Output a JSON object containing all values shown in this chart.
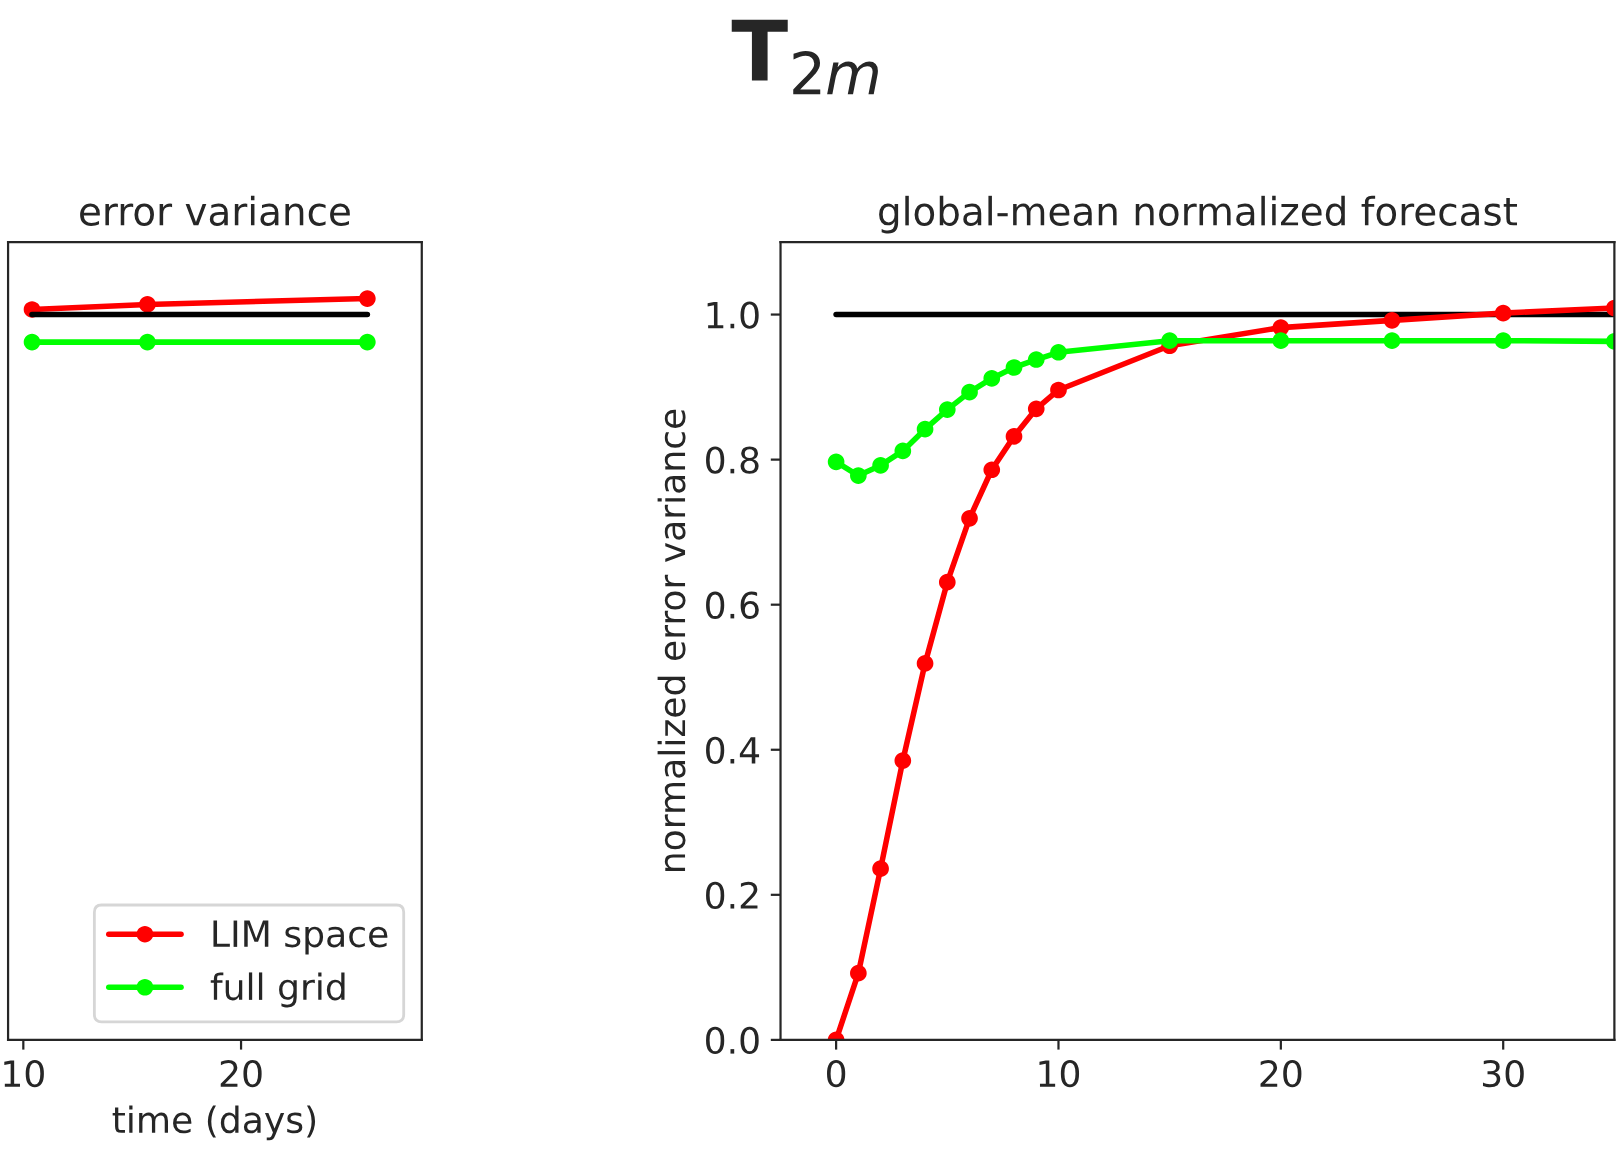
{
  "chart_data": [
    {
      "type": "line",
      "title": "error variance",
      "xlabel": "time (days)",
      "marker": "circle",
      "legend": "lower right",
      "grid": false,
      "tick_labels": "x",
      "xlim": [
        9.3,
        28.3
      ],
      "xticks": [
        10,
        20
      ],
      "ylim": [
        0,
        1.1
      ],
      "series": [
        {
          "name": "LIM space",
          "color": "#ff0000",
          "x": [
            10.4,
            15.7,
            25.8
          ],
          "values": [
            1.007,
            1.014,
            1.022
          ]
        },
        {
          "name": "full grid",
          "color": "#00ff00",
          "x": [
            10.4,
            15.7,
            25.8
          ],
          "values": [
            0.962,
            0.962,
            0.962
          ]
        },
        {
          "color": "#000000",
          "marker": "none",
          "x": [
            10.4,
            25.8
          ],
          "values": [
            1.0,
            1.0
          ]
        }
      ]
    },
    {
      "type": "line",
      "title": "global-mean normalized forecast",
      "ylabel": "normalized error variance",
      "marker": "circle",
      "grid": false,
      "xlim": [
        -2.5,
        35
      ],
      "xticks": [
        0,
        10,
        20,
        30
      ],
      "ylim": [
        0,
        1.1
      ],
      "yticks": [
        {
          "value": 0,
          "label": "0.0"
        },
        0.2,
        0.4,
        0.6,
        0.8,
        {
          "value": 1,
          "label": "1.0"
        }
      ],
      "series": [
        {
          "color": "#000000",
          "marker": "none",
          "x": [
            0,
            35
          ],
          "values": [
            1.0,
            1.0
          ]
        },
        {
          "color": "#ff0000",
          "x": [
            0,
            1,
            2,
            3,
            4,
            5,
            6,
            7,
            8,
            9,
            10,
            15,
            20,
            25,
            30,
            35
          ],
          "values": [
            0.0,
            0.092,
            0.236,
            0.385,
            0.519,
            0.631,
            0.719,
            0.786,
            0.832,
            0.87,
            0.896,
            0.957,
            0.982,
            0.992,
            1.002,
            1.009
          ]
        },
        {
          "color": "#00ff00",
          "x": [
            0,
            1,
            2,
            3,
            4,
            5,
            6,
            7,
            8,
            9,
            10,
            15,
            20,
            25,
            30,
            35
          ],
          "values": [
            0.797,
            0.778,
            0.792,
            0.812,
            0.842,
            0.869,
            0.893,
            0.912,
            0.927,
            0.938,
            0.948,
            0.964,
            0.964,
            0.964,
            0.964,
            0.963
          ]
        }
      ]
    },
    {
      "type": "other",
      "title": "T$_{2m}$"
    }
  ]
}
